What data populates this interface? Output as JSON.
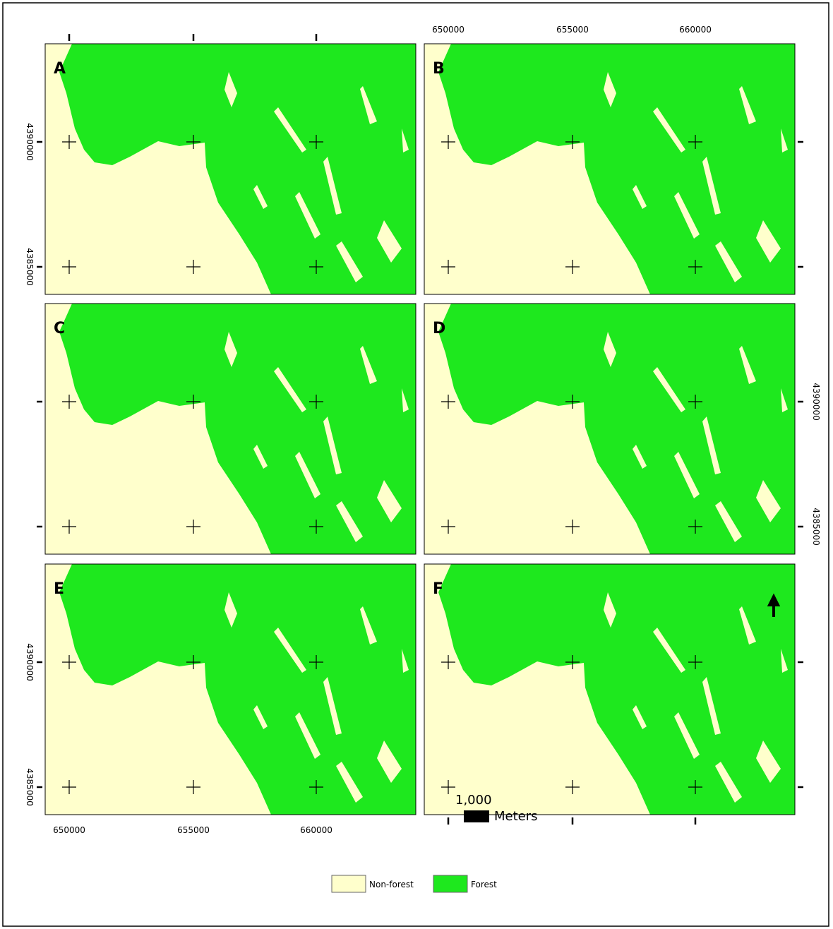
{
  "panels": [
    {
      "label": "A"
    },
    {
      "label": "B"
    },
    {
      "label": "C"
    },
    {
      "label": "D"
    },
    {
      "label": "E"
    },
    {
      "label": "F"
    }
  ],
  "x_tick_labels": [
    "650000",
    "655000",
    "660000"
  ],
  "y_tick_labels": [
    "4390000",
    "4385000"
  ],
  "scale_bar": {
    "value": "1,000",
    "unit": "Meters"
  },
  "legend": [
    {
      "label": "Non-forest",
      "color": "#ffffcc"
    },
    {
      "label": "Forest",
      "color": "#1ee81e"
    }
  ]
}
